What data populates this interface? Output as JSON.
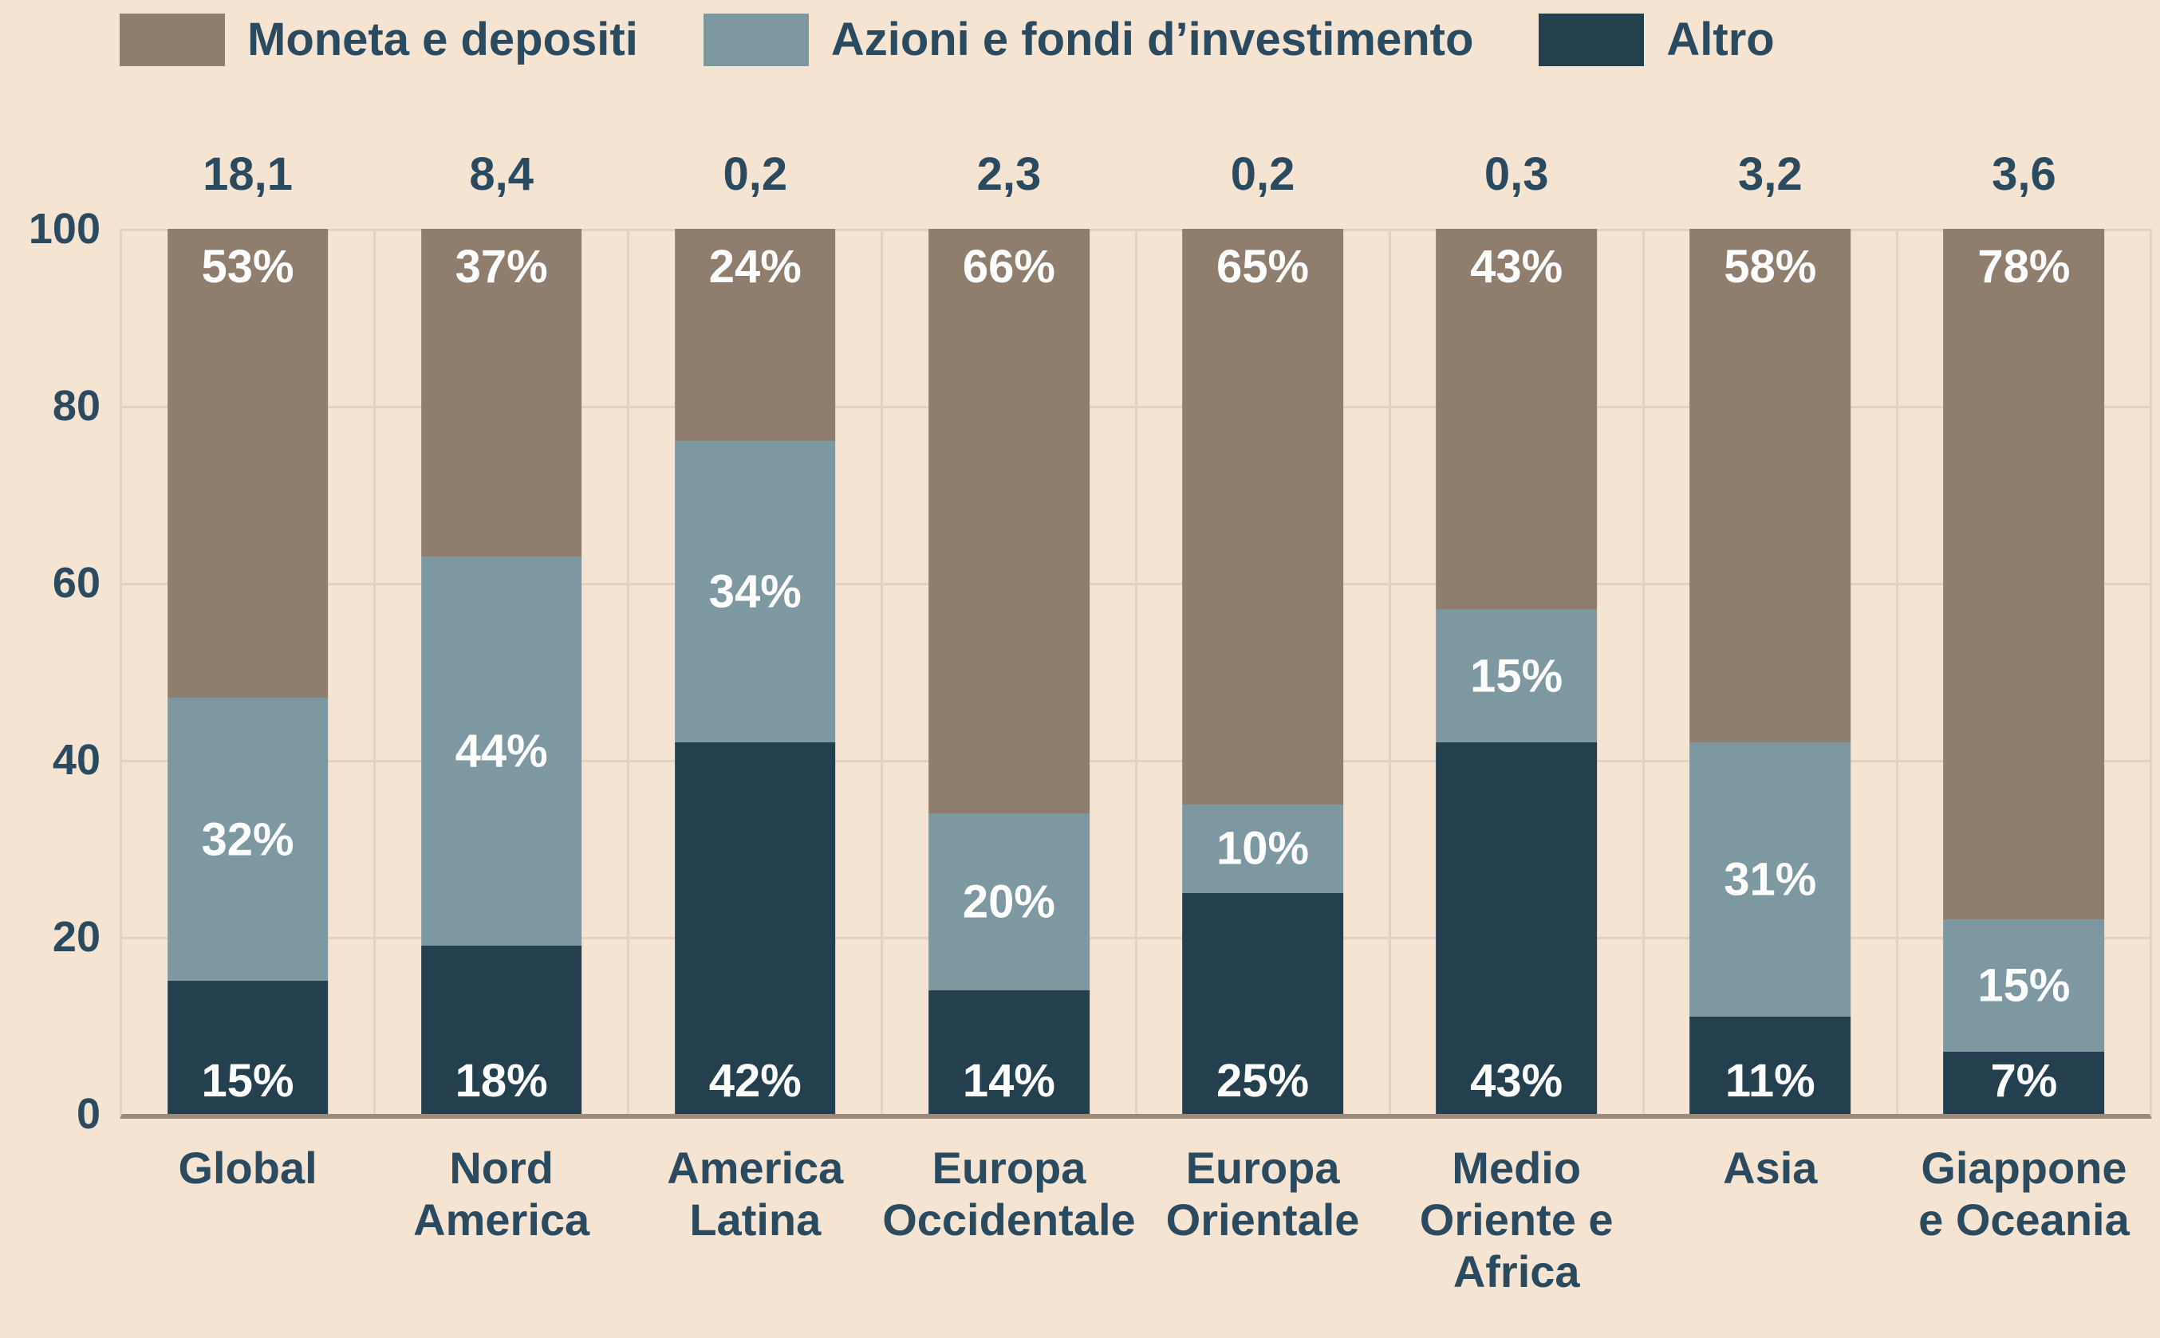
{
  "colors": {
    "background": "#f6e4d3",
    "gridline": "#e2d2c1",
    "baseline": "#9c8b7a",
    "text": "#2a4a5f",
    "value_label": "#ffffff"
  },
  "chart_data": {
    "type": "bar",
    "subtype": "stacked-100-percent",
    "grid": "both",
    "legend_position": "top",
    "ylim": [
      0,
      100
    ],
    "y_tick_labels": [
      "100",
      "80",
      "60",
      "40",
      "20",
      "0"
    ],
    "y_tick_values": [
      100,
      80,
      60,
      40,
      20,
      0
    ],
    "categories": [
      "Global",
      "Nord America",
      "America Latina",
      "Europa Occidentale",
      "Europa Orientale",
      "Medio Oriente e Africa",
      "Asia",
      "Giappone e Oceania"
    ],
    "categories_lines": [
      [
        "Global"
      ],
      [
        "Nord",
        "America"
      ],
      [
        "America",
        "Latina"
      ],
      [
        "Europa",
        "Occidentale"
      ],
      [
        "Europa",
        "Orientale"
      ],
      [
        "Medio",
        "Oriente e",
        "Africa"
      ],
      [
        "Asia"
      ],
      [
        "Giappone",
        "e Oceania"
      ]
    ],
    "totals": [
      "18,1",
      "8,4",
      "0,2",
      "2,3",
      "0,2",
      "0,3",
      "3,2",
      "3,6"
    ],
    "series": [
      {
        "key": "moneta",
        "name": "Moneta e depositi",
        "color": "#8f7e6e",
        "label_pos": "top",
        "values": [
          53,
          37,
          24,
          66,
          65,
          43,
          58,
          78
        ],
        "labels": [
          "53%",
          "37%",
          "24%",
          "66%",
          "65%",
          "43%",
          "58%",
          "78%"
        ],
        "render_heights": [
          53,
          37,
          24,
          66,
          65,
          43,
          58,
          78
        ]
      },
      {
        "key": "azioni",
        "name": "Azioni e fondi d’investimento",
        "color": "#7e98a2",
        "label_pos": "middle",
        "values": [
          32,
          44,
          34,
          20,
          10,
          15,
          31,
          15
        ],
        "labels": [
          "32%",
          "44%",
          "34%",
          "20%",
          "10%",
          "15%",
          "31%",
          "15%"
        ],
        "render_heights": [
          32,
          44,
          34,
          20,
          10,
          15,
          31,
          15
        ]
      },
      {
        "key": "altro",
        "name": "Altro",
        "color": "#24404f",
        "label_pos": "bottom",
        "values": [
          15,
          18,
          42,
          14,
          25,
          43,
          11,
          7
        ],
        "labels": [
          "15%",
          "18%",
          "42%",
          "14%",
          "25%",
          "43%",
          "11%",
          "7%"
        ],
        "render_heights": [
          15,
          19,
          42,
          14,
          25,
          42,
          11,
          7
        ]
      }
    ]
  }
}
